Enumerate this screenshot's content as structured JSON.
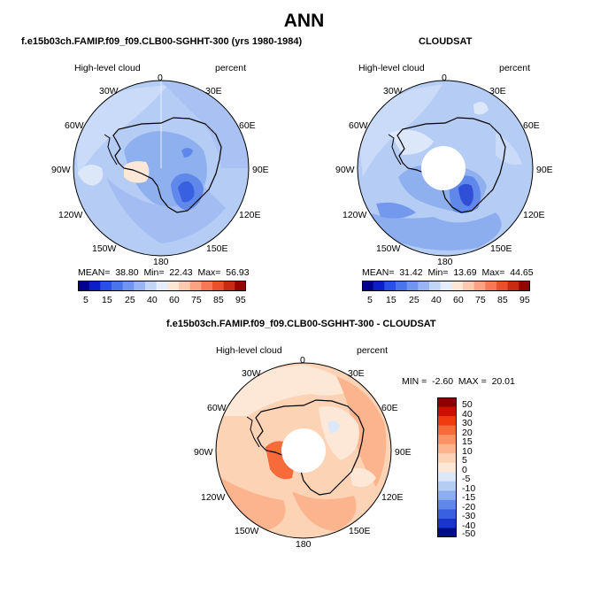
{
  "page": {
    "title": "ANN"
  },
  "panels": [
    {
      "id": "model",
      "header": "f.e15b03ch.FAMIP.f09_f09.CLB00-SGHHT-300 (yrs 1980-1984)",
      "variable": "High-level cloud",
      "units": "percent",
      "lon_labels": [
        "0",
        "30E",
        "60E",
        "90E",
        "120E",
        "150E",
        "180",
        "150W",
        "120W",
        "90W",
        "60W",
        "30W"
      ],
      "stats": {
        "mean_label": "MEAN=",
        "mean": "38.80",
        "min_label": "Min=",
        "min": "22.43",
        "max_label": "Max=",
        "max": "56.93"
      }
    },
    {
      "id": "obs",
      "header": "CLOUDSAT",
      "variable": "High-level cloud",
      "units": "percent",
      "lon_labels": [
        "0",
        "30E",
        "60E",
        "90E",
        "120E",
        "150E",
        "180",
        "150W",
        "120W",
        "90W",
        "60W",
        "30W"
      ],
      "stats": {
        "mean_label": "MEAN=",
        "mean": "31.42",
        "min_label": "Min=",
        "min": "13.69",
        "max_label": "Max=",
        "max": "44.65"
      }
    },
    {
      "id": "diff",
      "header": "f.e15b03ch.FAMIP.f09_f09.CLB00-SGHHT-300 - CLOUDSAT",
      "variable": "High-level cloud",
      "units": "percent",
      "lon_labels": [
        "0",
        "30E",
        "60E",
        "90E",
        "120E",
        "150E",
        "180",
        "150W",
        "120W",
        "90W",
        "60W",
        "30W"
      ],
      "stats_text": {
        "min_label": "MIN =",
        "min": "-2.60",
        "max_label": "MAX =",
        "max": "20.01"
      }
    }
  ],
  "colorbars": {
    "horizontal": {
      "ticks": [
        "5",
        "15",
        "25",
        "40",
        "60",
        "75",
        "85",
        "95"
      ],
      "colors": [
        "#00008b",
        "#0b1fc8",
        "#2a4fe8",
        "#4a74ec",
        "#7095f0",
        "#98b4f4",
        "#c3d5f7",
        "#e4eefb",
        "#fde6d3",
        "#fbc9ad",
        "#f9a383",
        "#f67856",
        "#e9502b",
        "#c92a14",
        "#940500"
      ]
    },
    "vertical": {
      "ticks": [
        "50",
        "40",
        "30",
        "20",
        "15",
        "10",
        "5",
        "0",
        "-5",
        "-10",
        "-15",
        "-20",
        "-30",
        "-40",
        "-50"
      ],
      "colors": [
        "#8b0000",
        "#cc1000",
        "#f03a10",
        "#f76a3a",
        "#fa9266",
        "#fbb48e",
        "#fcd3b4",
        "#fde8d7",
        "#dce8fa",
        "#b5ccf5",
        "#8caeef",
        "#5f88ea",
        "#3a60e2",
        "#1a35cc",
        "#000d8a"
      ]
    }
  },
  "chart_data": [
    {
      "type": "heatmap",
      "projection": "south polar stereographic",
      "title": "f.e15b03ch.FAMIP.f09_f09.CLB00-SGHHT-300 (yrs 1980-1984)",
      "variable": "High-level cloud",
      "units": "percent",
      "contour_levels": [
        5,
        10,
        15,
        20,
        25,
        30,
        40,
        50,
        60,
        65,
        70,
        75,
        80,
        85,
        90,
        95
      ],
      "mean": 38.8,
      "min": 22.43,
      "max": 56.93
    },
    {
      "type": "heatmap",
      "projection": "south polar stereographic",
      "title": "CLOUDSAT",
      "variable": "High-level cloud",
      "units": "percent",
      "contour_levels": [
        5,
        10,
        15,
        20,
        25,
        30,
        40,
        50,
        60,
        65,
        70,
        75,
        80,
        85,
        90,
        95
      ],
      "mean": 31.42,
      "min": 13.69,
      "max": 44.65
    },
    {
      "type": "heatmap",
      "projection": "south polar stereographic",
      "title": "f.e15b03ch.FAMIP.f09_f09.CLB00-SGHHT-300 - CLOUDSAT",
      "variable": "High-level cloud",
      "units": "percent",
      "contour_levels": [
        -50,
        -40,
        -30,
        -20,
        -15,
        -10,
        -5,
        0,
        5,
        10,
        15,
        20,
        30,
        40,
        50
      ],
      "min": -2.6,
      "max": 20.01
    }
  ]
}
